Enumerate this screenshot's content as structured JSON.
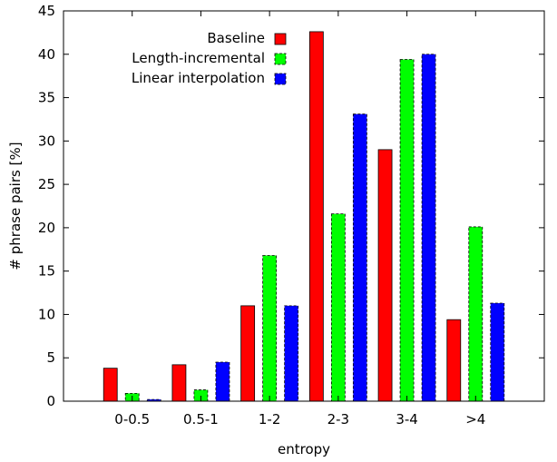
{
  "chart_data": {
    "type": "bar",
    "title": "",
    "xlabel": "entropy",
    "ylabel": "# phrase pairs [%]",
    "ylim": [
      0,
      45
    ],
    "yticks": [
      0,
      5,
      10,
      15,
      20,
      25,
      30,
      35,
      40,
      45
    ],
    "categories": [
      "0-0.5",
      "0.5-1",
      "1-2",
      "2-3",
      "3-4",
      ">4"
    ],
    "legend_position": "top-right",
    "grid": false,
    "series": [
      {
        "name": "Baseline",
        "color": "#ff0000",
        "values": [
          3.8,
          4.2,
          11.0,
          42.6,
          29.0,
          9.4
        ]
      },
      {
        "name": "Length-incremental",
        "color": "#00ff00",
        "dashed": true,
        "values": [
          0.9,
          1.3,
          16.8,
          21.6,
          39.4,
          20.1
        ]
      },
      {
        "name": "Linear interpolation",
        "color": "#0000ff",
        "dashed": true,
        "values": [
          0.2,
          4.5,
          11.0,
          33.1,
          40.0,
          11.3
        ]
      }
    ]
  }
}
